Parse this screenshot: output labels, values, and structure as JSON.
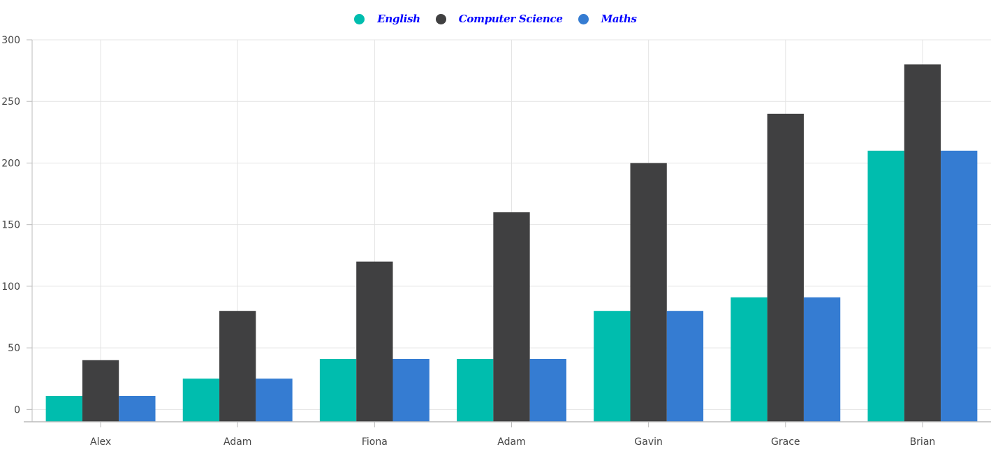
{
  "chart_data": {
    "type": "bar",
    "categories": [
      "Alex",
      "Adam",
      "Fiona",
      "Adam",
      "Gavin",
      "Grace",
      "Brian"
    ],
    "series": [
      {
        "name": "English",
        "color": "#00bdae",
        "values": [
          11,
          25,
          41,
          41,
          80,
          91,
          210
        ]
      },
      {
        "name": "Computer Science",
        "color": "#404041",
        "values": [
          40,
          80,
          120,
          160,
          200,
          240,
          280
        ]
      },
      {
        "name": "Maths",
        "color": "#357cd2",
        "values": [
          11,
          25,
          41,
          41,
          80,
          91,
          210
        ]
      }
    ],
    "y_ticks": [
      "0",
      "50",
      "100",
      "150",
      "200",
      "250",
      "300"
    ],
    "ylim": [
      -10,
      300
    ],
    "grid": true,
    "legend_position": "top-center"
  }
}
